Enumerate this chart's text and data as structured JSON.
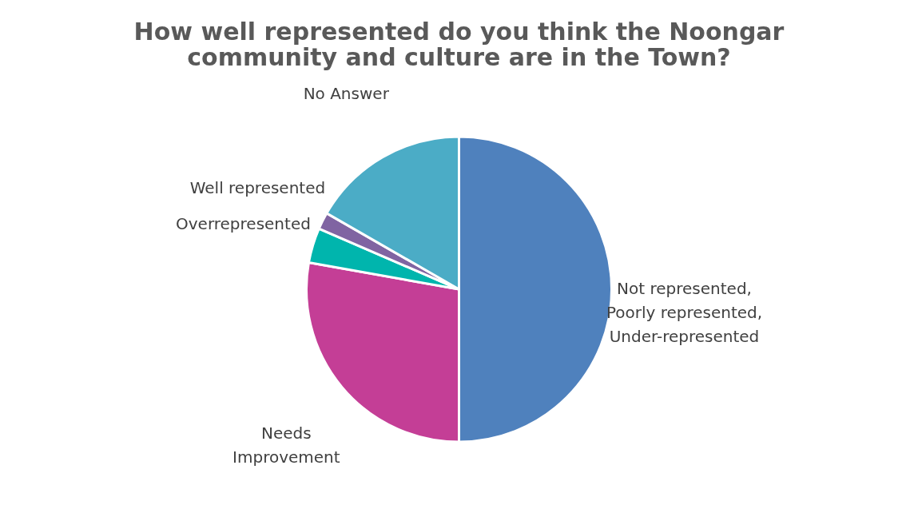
{
  "chart_data": {
    "type": "pie",
    "title": [
      "How well represented do you think the Noongar",
      "community and culture are in the Town?"
    ],
    "categories": [
      "Not represented,\nPoorly represented,\nUnder-represented",
      "Needs\nImprovement",
      "Overrepresented",
      "Well represented",
      "No Answer"
    ],
    "values": [
      50,
      27.8,
      3.7,
      1.8,
      16.7
    ],
    "colors": [
      "#4f81bd",
      "#c43e96",
      "#00b5ad",
      "#8064a2",
      "#4bacc6"
    ],
    "legend": false
  }
}
